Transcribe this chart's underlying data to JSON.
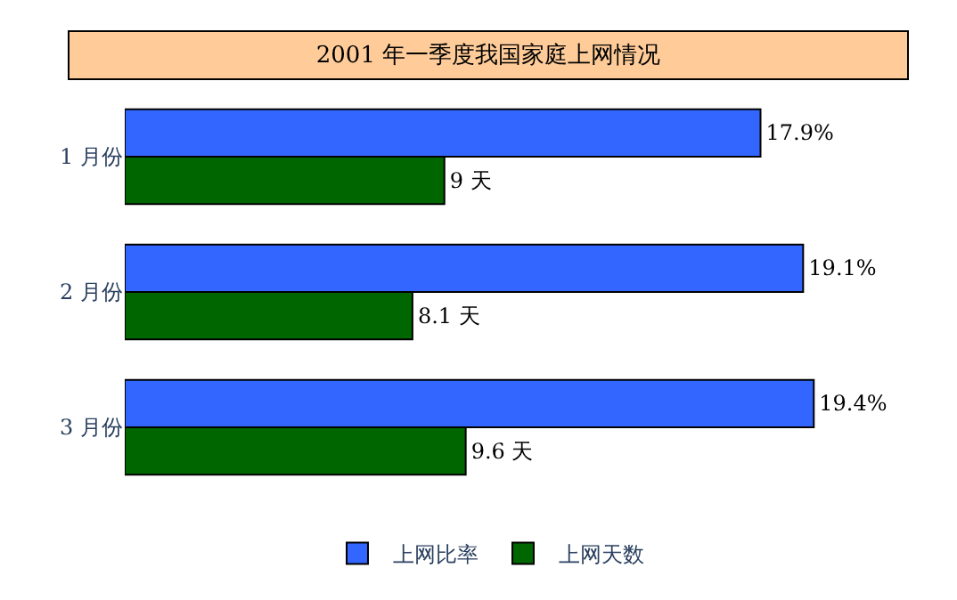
{
  "chart_data": {
    "type": "bar",
    "orientation": "horizontal",
    "title": "2001 年一季度我国家庭上网情况",
    "categories": [
      "1 月份",
      "2 月份",
      "3 月份"
    ],
    "tick_labels": "y",
    "legend": "bottom",
    "series": [
      {
        "name": "上网比率",
        "color": "#3366ff",
        "values": [
          17.9,
          19.1,
          19.4
        ],
        "value_labels": [
          "17.9%",
          "19.1%",
          "19.4%"
        ]
      },
      {
        "name": "上网天数",
        "color": "#006600",
        "values": [
          9,
          8.1,
          9.6
        ],
        "value_labels": [
          "9 天",
          "8.1 天",
          "9.6 天"
        ]
      }
    ]
  }
}
